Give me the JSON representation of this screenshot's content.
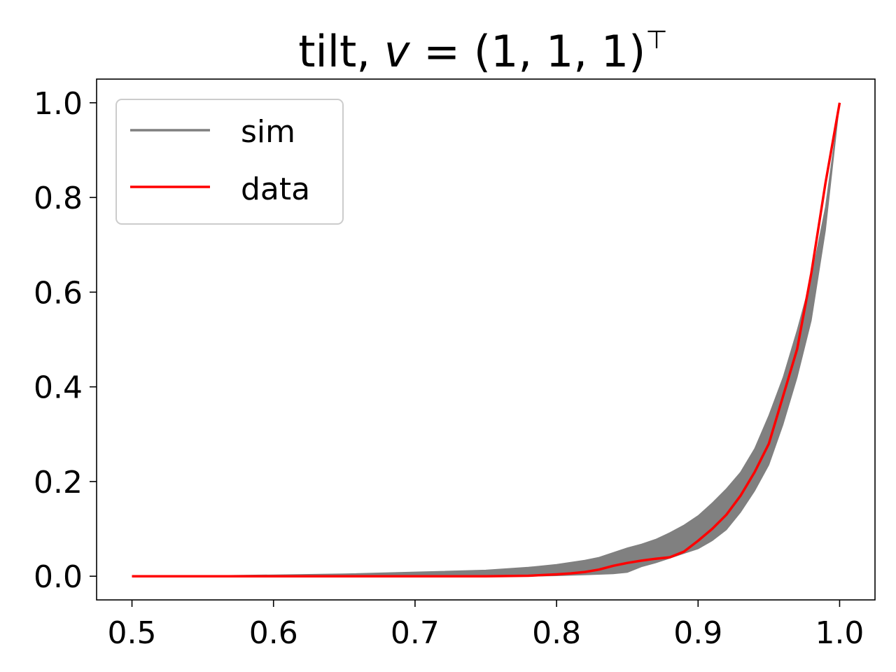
{
  "chart_data": {
    "type": "area",
    "title": {
      "prefix": "tilt, ",
      "var": "v",
      "eq": " = (1, 1, 1)",
      "sup": "⊤"
    },
    "xlabel": "",
    "ylabel": "",
    "xlim": [
      0.475,
      1.025
    ],
    "ylim": [
      -0.05,
      1.05
    ],
    "xticks": [
      0.5,
      0.6,
      0.7,
      0.8,
      0.9,
      1.0
    ],
    "xtick_labels": [
      "0.5",
      "0.6",
      "0.7",
      "0.8",
      "0.9",
      "1.0"
    ],
    "yticks": [
      0.0,
      0.2,
      0.4,
      0.6,
      0.8,
      1.0
    ],
    "ytick_labels": [
      "0.0",
      "0.2",
      "0.4",
      "0.6",
      "0.8",
      "1.0"
    ],
    "grid": false,
    "legend": {
      "placement": "upper-left",
      "entries": [
        {
          "label": "sim",
          "color": "#808080"
        },
        {
          "label": "data",
          "color": "#ff0000"
        }
      ]
    },
    "series": [
      {
        "name": "sim",
        "kind": "band",
        "color": "#808080",
        "x": [
          0.5,
          0.55,
          0.6,
          0.65,
          0.7,
          0.75,
          0.78,
          0.8,
          0.82,
          0.83,
          0.84,
          0.85,
          0.86,
          0.87,
          0.88,
          0.89,
          0.9,
          0.91,
          0.92,
          0.93,
          0.94,
          0.95,
          0.96,
          0.97,
          0.98,
          0.99,
          1.0
        ],
        "lower": [
          0.0,
          0.0,
          0.0,
          0.0,
          0.0,
          0.0,
          0.0,
          0.001,
          0.003,
          0.004,
          0.005,
          0.008,
          0.02,
          0.028,
          0.038,
          0.048,
          0.058,
          0.075,
          0.098,
          0.135,
          0.18,
          0.235,
          0.32,
          0.42,
          0.54,
          0.73,
          1.0
        ],
        "upper": [
          0.0,
          0.001,
          0.003,
          0.005,
          0.009,
          0.013,
          0.019,
          0.025,
          0.034,
          0.04,
          0.05,
          0.06,
          0.068,
          0.078,
          0.092,
          0.108,
          0.128,
          0.155,
          0.185,
          0.22,
          0.27,
          0.34,
          0.42,
          0.52,
          0.63,
          0.78,
          1.0
        ]
      },
      {
        "name": "data",
        "kind": "line",
        "color": "#ff0000",
        "x": [
          0.5,
          0.55,
          0.6,
          0.65,
          0.7,
          0.75,
          0.78,
          0.8,
          0.81,
          0.82,
          0.83,
          0.84,
          0.85,
          0.86,
          0.87,
          0.88,
          0.89,
          0.9,
          0.91,
          0.92,
          0.93,
          0.94,
          0.95,
          0.96,
          0.97,
          0.98,
          0.99,
          1.0
        ],
        "y": [
          0.0,
          0.0,
          0.0,
          0.0,
          0.0,
          0.0,
          0.001,
          0.004,
          0.006,
          0.009,
          0.014,
          0.022,
          0.028,
          0.033,
          0.037,
          0.04,
          0.052,
          0.075,
          0.1,
          0.13,
          0.17,
          0.22,
          0.28,
          0.38,
          0.48,
          0.64,
          0.83,
          1.0
        ]
      }
    ]
  }
}
